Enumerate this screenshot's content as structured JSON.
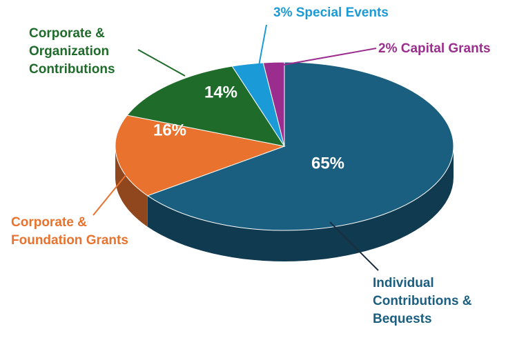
{
  "chart_data": {
    "type": "pie",
    "categories": [
      "Individual Contributions & Bequests",
      "Corporate & Foundation Grants",
      "Corporate & Organization Contributions",
      "Special Events",
      "Capital Grants"
    ],
    "values": [
      65,
      16,
      14,
      3,
      2
    ],
    "value_labels": [
      "65%",
      "16%",
      "14%",
      "3%",
      "2%"
    ],
    "colors": [
      "#1a5e80",
      "#e8722e",
      "#1e6b2a",
      "#1a9ad6",
      "#9b2d8e"
    ],
    "three_d": true
  }
}
